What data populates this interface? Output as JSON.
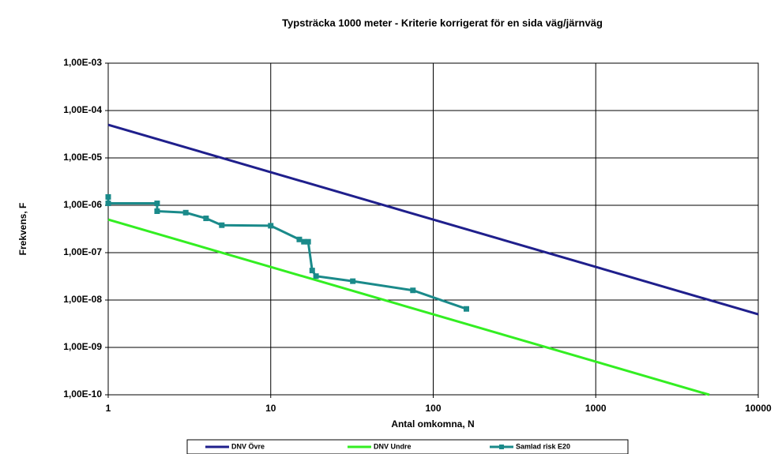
{
  "chart_data": {
    "type": "line",
    "title": "Typsträcka 1000 meter - Kriterie korrigerat för en sida väg/järnväg",
    "xlabel": "Antal omkomna, N",
    "ylabel": "Frekvens, F",
    "xlog": true,
    "ylog": true,
    "grid": true,
    "xlim": [
      1,
      10000
    ],
    "xticks": [
      1,
      10,
      100,
      1000,
      10000
    ],
    "ylim": [
      1e-10,
      0.001
    ],
    "yticks": [
      {
        "value": 1e-10,
        "label": "1,00E-10"
      },
      {
        "value": 1e-09,
        "label": "1,00E-09"
      },
      {
        "value": 1e-08,
        "label": "1,00E-08"
      },
      {
        "value": 1e-07,
        "label": "1,00E-07"
      },
      {
        "value": 1e-06,
        "label": "1,00E-06"
      },
      {
        "value": 1e-05,
        "label": "1,00E-05"
      },
      {
        "value": 0.0001,
        "label": "1,00E-04"
      },
      {
        "value": 0.001,
        "label": "1,00E-03"
      }
    ],
    "legend": "bottom",
    "series": [
      {
        "name": "DNV Övre",
        "color": "#1f1f8c",
        "x": [
          1,
          10000
        ],
        "values": [
          5e-05,
          5e-09
        ],
        "markers": false
      },
      {
        "name": "DNV Undre",
        "color": "#33ee22",
        "x": [
          1,
          5000
        ],
        "values": [
          5e-07,
          1e-10
        ],
        "markers": false
      },
      {
        "name": "Samlad risk E20",
        "color": "#1a8a8a",
        "x": [
          1,
          1,
          2,
          2,
          3,
          4,
          5,
          10,
          15,
          16,
          17,
          18,
          19,
          32,
          75,
          160
        ],
        "values": [
          1.5e-06,
          1.1e-06,
          1.1e-06,
          7.5e-07,
          7e-07,
          5.3e-07,
          3.8e-07,
          3.7e-07,
          1.9e-07,
          1.7e-07,
          1.7e-07,
          4.2e-08,
          3.2e-08,
          2.5e-08,
          1.6e-08,
          6.5e-09
        ],
        "markers": true
      }
    ]
  }
}
